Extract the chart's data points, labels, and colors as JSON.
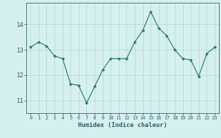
{
  "x": [
    0,
    1,
    2,
    3,
    4,
    5,
    6,
    7,
    8,
    9,
    10,
    11,
    12,
    13,
    14,
    15,
    16,
    17,
    18,
    19,
    20,
    21,
    22,
    23
  ],
  "y": [
    13.1,
    13.3,
    13.15,
    12.75,
    12.65,
    11.65,
    11.6,
    10.9,
    11.55,
    12.2,
    12.65,
    12.65,
    12.65,
    13.3,
    13.75,
    14.5,
    13.85,
    13.55,
    13.0,
    12.65,
    12.6,
    11.95,
    12.85,
    13.1
  ],
  "line_color": "#2e7d6e",
  "marker": "D",
  "marker_size": 2.0,
  "bg_color": "#d6f0f0",
  "grid_color": "#b8d8d8",
  "axis_label_color": "#2e5d5e",
  "tick_color": "#2e5d5e",
  "xlabel": "Humidex (Indice chaleur)",
  "ylim": [
    10.5,
    14.85
  ],
  "xlim": [
    -0.5,
    23.5
  ],
  "yticks": [
    11,
    12,
    13,
    14
  ],
  "xlabel_fontsize": 6.5,
  "xtick_fontsize": 5.0,
  "ytick_fontsize": 6.5
}
